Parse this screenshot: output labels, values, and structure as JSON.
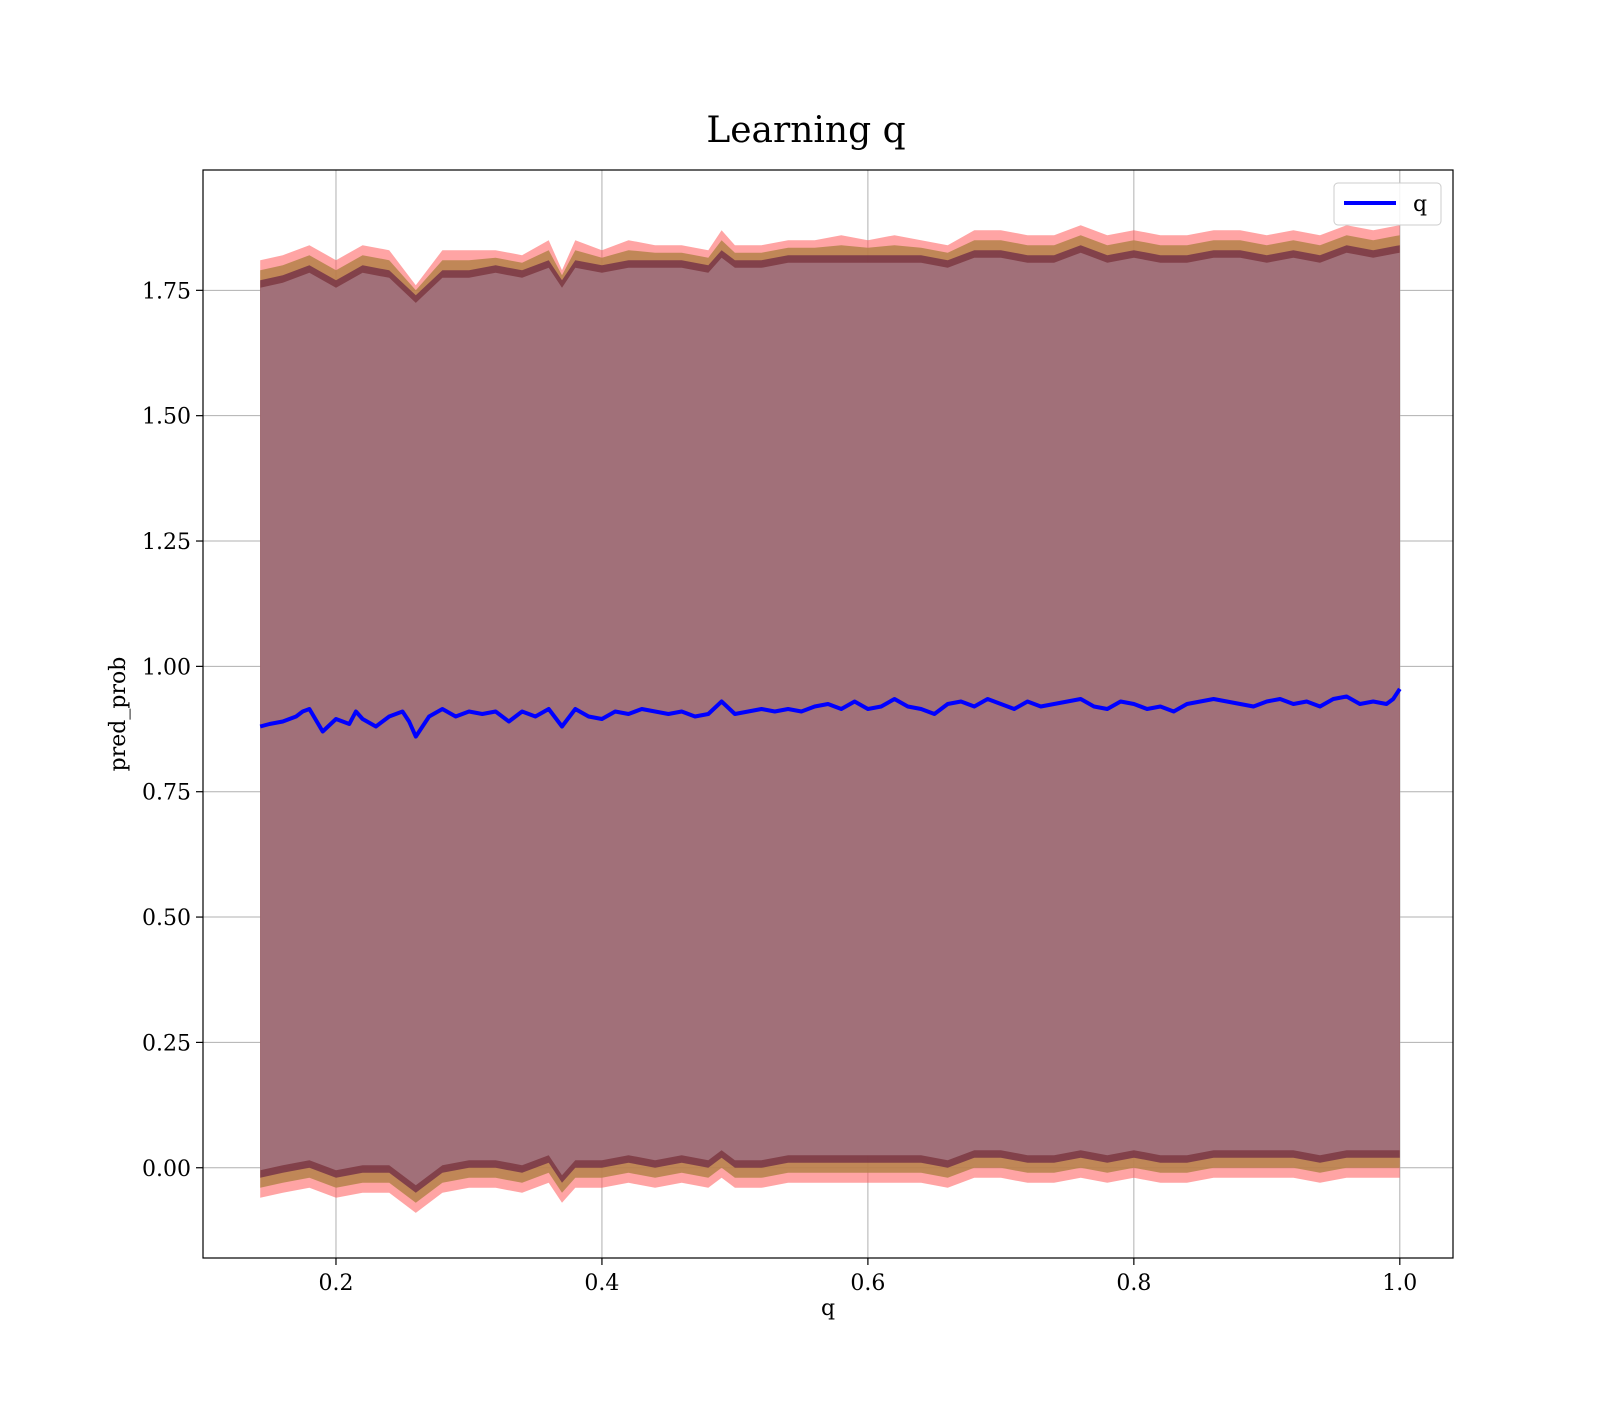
{
  "chart_data": {
    "type": "line",
    "title": "Learning q",
    "xlabel": "q",
    "ylabel": "pred_prob",
    "xlim": [
      0.1,
      1.04
    ],
    "ylim": [
      -0.18,
      1.99
    ],
    "x_ticks": [
      "0.2",
      "0.4",
      "0.6",
      "0.8",
      "1.0"
    ],
    "y_ticks": [
      "0.00",
      "0.25",
      "0.50",
      "0.75",
      "1.00",
      "1.25",
      "1.50",
      "1.75"
    ],
    "grid": true,
    "legend_position": "top-right",
    "legend": [
      {
        "label": "q",
        "color": "#0000ff"
      }
    ],
    "colors": {
      "line": "#0000ff",
      "band_outer": "#ff5a5a",
      "band_mid": "#b5824a",
      "band_inner": "#6e2a45",
      "band_body": "#a17079",
      "grid": "#b0b0b0"
    },
    "series": [
      {
        "name": "q",
        "x": [
          0.143,
          0.15,
          0.16,
          0.17,
          0.175,
          0.18,
          0.19,
          0.2,
          0.21,
          0.215,
          0.22,
          0.23,
          0.24,
          0.25,
          0.255,
          0.26,
          0.27,
          0.28,
          0.29,
          0.3,
          0.31,
          0.32,
          0.33,
          0.34,
          0.35,
          0.36,
          0.37,
          0.38,
          0.39,
          0.4,
          0.41,
          0.42,
          0.43,
          0.44,
          0.45,
          0.46,
          0.47,
          0.48,
          0.49,
          0.5,
          0.51,
          0.52,
          0.53,
          0.54,
          0.55,
          0.56,
          0.57,
          0.58,
          0.59,
          0.6,
          0.61,
          0.62,
          0.63,
          0.64,
          0.65,
          0.66,
          0.67,
          0.68,
          0.69,
          0.7,
          0.71,
          0.72,
          0.73,
          0.74,
          0.75,
          0.76,
          0.77,
          0.78,
          0.79,
          0.8,
          0.81,
          0.82,
          0.83,
          0.84,
          0.85,
          0.86,
          0.87,
          0.88,
          0.89,
          0.9,
          0.91,
          0.92,
          0.93,
          0.94,
          0.95,
          0.96,
          0.97,
          0.98,
          0.99,
          0.995,
          1.0
        ],
        "values": [
          0.88,
          0.885,
          0.89,
          0.9,
          0.91,
          0.915,
          0.87,
          0.895,
          0.885,
          0.91,
          0.895,
          0.88,
          0.9,
          0.91,
          0.89,
          0.86,
          0.9,
          0.915,
          0.9,
          0.91,
          0.905,
          0.91,
          0.89,
          0.91,
          0.9,
          0.915,
          0.88,
          0.915,
          0.9,
          0.895,
          0.91,
          0.905,
          0.915,
          0.91,
          0.905,
          0.91,
          0.9,
          0.905,
          0.93,
          0.905,
          0.91,
          0.915,
          0.91,
          0.915,
          0.91,
          0.92,
          0.925,
          0.915,
          0.93,
          0.915,
          0.92,
          0.935,
          0.92,
          0.915,
          0.905,
          0.925,
          0.93,
          0.92,
          0.935,
          0.925,
          0.915,
          0.93,
          0.92,
          0.925,
          0.93,
          0.935,
          0.92,
          0.915,
          0.93,
          0.925,
          0.915,
          0.92,
          0.91,
          0.925,
          0.93,
          0.935,
          0.93,
          0.925,
          0.92,
          0.93,
          0.935,
          0.925,
          0.93,
          0.92,
          0.935,
          0.94,
          0.925,
          0.93,
          0.925,
          0.935,
          0.955
        ]
      }
    ],
    "bands": [
      {
        "name": "outer",
        "x": [
          0.143,
          0.16,
          0.18,
          0.2,
          0.22,
          0.24,
          0.26,
          0.28,
          0.3,
          0.32,
          0.34,
          0.36,
          0.37,
          0.38,
          0.4,
          0.42,
          0.44,
          0.46,
          0.48,
          0.49,
          0.5,
          0.52,
          0.54,
          0.56,
          0.58,
          0.6,
          0.62,
          0.64,
          0.66,
          0.68,
          0.7,
          0.72,
          0.74,
          0.76,
          0.78,
          0.8,
          0.82,
          0.84,
          0.86,
          0.88,
          0.9,
          0.92,
          0.94,
          0.96,
          0.98,
          1.0
        ],
        "upper": [
          1.81,
          1.82,
          1.84,
          1.81,
          1.84,
          1.83,
          1.76,
          1.83,
          1.83,
          1.83,
          1.82,
          1.85,
          1.79,
          1.85,
          1.83,
          1.85,
          1.84,
          1.84,
          1.83,
          1.87,
          1.84,
          1.84,
          1.85,
          1.85,
          1.86,
          1.85,
          1.86,
          1.85,
          1.84,
          1.87,
          1.87,
          1.86,
          1.86,
          1.88,
          1.86,
          1.87,
          1.86,
          1.86,
          1.87,
          1.87,
          1.86,
          1.87,
          1.86,
          1.88,
          1.87,
          1.88
        ],
        "lower": [
          -0.06,
          -0.05,
          -0.04,
          -0.06,
          -0.05,
          -0.05,
          -0.09,
          -0.05,
          -0.04,
          -0.04,
          -0.05,
          -0.03,
          -0.07,
          -0.04,
          -0.04,
          -0.03,
          -0.04,
          -0.03,
          -0.04,
          -0.02,
          -0.04,
          -0.04,
          -0.03,
          -0.03,
          -0.03,
          -0.03,
          -0.03,
          -0.03,
          -0.04,
          -0.02,
          -0.02,
          -0.03,
          -0.03,
          -0.02,
          -0.03,
          -0.02,
          -0.03,
          -0.03,
          -0.02,
          -0.02,
          -0.02,
          -0.02,
          -0.03,
          -0.02,
          -0.02,
          -0.02
        ]
      },
      {
        "name": "inner",
        "x": [
          0.143,
          0.16,
          0.18,
          0.2,
          0.22,
          0.24,
          0.26,
          0.28,
          0.3,
          0.32,
          0.34,
          0.36,
          0.37,
          0.38,
          0.4,
          0.42,
          0.44,
          0.46,
          0.48,
          0.49,
          0.5,
          0.52,
          0.54,
          0.56,
          0.58,
          0.6,
          0.62,
          0.64,
          0.66,
          0.68,
          0.7,
          0.72,
          0.74,
          0.76,
          0.78,
          0.8,
          0.82,
          0.84,
          0.86,
          0.88,
          0.9,
          0.92,
          0.94,
          0.96,
          0.98,
          1.0
        ],
        "upper": [
          1.77,
          1.78,
          1.8,
          1.77,
          1.8,
          1.79,
          1.74,
          1.79,
          1.79,
          1.8,
          1.79,
          1.81,
          1.77,
          1.81,
          1.8,
          1.81,
          1.81,
          1.81,
          1.8,
          1.83,
          1.81,
          1.81,
          1.82,
          1.82,
          1.82,
          1.82,
          1.82,
          1.82,
          1.81,
          1.83,
          1.83,
          1.82,
          1.82,
          1.84,
          1.82,
          1.83,
          1.82,
          1.82,
          1.83,
          1.83,
          1.82,
          1.83,
          1.82,
          1.84,
          1.83,
          1.84
        ],
        "lower": [
          -0.02,
          -0.01,
          0.0,
          -0.02,
          -0.01,
          -0.01,
          -0.05,
          -0.01,
          0.0,
          0.0,
          -0.01,
          0.01,
          -0.03,
          0.0,
          0.0,
          0.01,
          0.0,
          0.01,
          0.0,
          0.02,
          0.0,
          0.0,
          0.01,
          0.01,
          0.01,
          0.01,
          0.01,
          0.01,
          0.0,
          0.02,
          0.02,
          0.01,
          0.01,
          0.02,
          0.01,
          0.02,
          0.01,
          0.01,
          0.02,
          0.02,
          0.02,
          0.02,
          0.01,
          0.02,
          0.02,
          0.02
        ]
      }
    ]
  }
}
